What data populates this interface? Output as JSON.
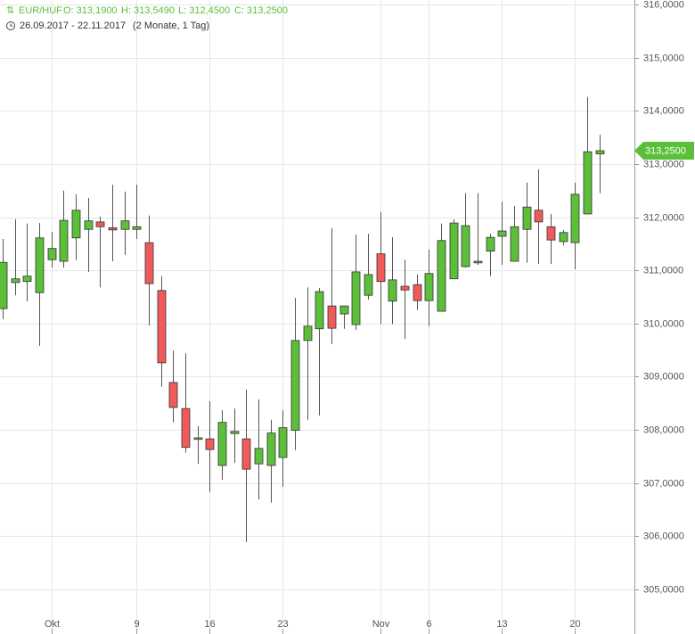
{
  "chart_data": {
    "type": "candlestick",
    "header": {
      "symbol": "EUR/HUF",
      "ohlc": [
        "O: 313,1900",
        "H: 313,5490",
        "L: 312,4500",
        "C: 313,2500"
      ],
      "range": "26.09.2017 - 22.11.2017",
      "duration": "(2 Monate, 1 Tag)"
    },
    "last_label": "313,2500",
    "up_color": "#5cbf3a",
    "down_color": "#ef5a5a",
    "categories": [
      null,
      null,
      null,
      null,
      "Okt",
      null,
      null,
      null,
      null,
      null,
      null,
      "9",
      null,
      null,
      null,
      null,
      null,
      "16",
      null,
      null,
      null,
      null,
      null,
      "23",
      null,
      null,
      null,
      null,
      null,
      null,
      null,
      "Nov",
      null,
      null,
      null,
      "6",
      null,
      null,
      null,
      null,
      null,
      "13",
      null,
      null,
      null,
      null,
      null,
      "20",
      null,
      null
    ],
    "open": [
      310.28,
      310.77,
      310.79,
      310.58,
      311.2,
      311.17,
      311.61,
      311.77,
      311.91,
      311.8,
      311.77,
      311.77,
      311.52,
      310.62,
      308.89,
      308.4,
      307.82,
      307.83,
      307.33,
      307.93,
      307.83,
      307.36,
      307.33,
      307.48,
      307.99,
      309.68,
      309.9,
      310.33,
      310.18,
      309.98,
      310.53,
      311.31,
      310.42,
      310.7,
      310.73,
      310.43,
      310.23,
      310.84,
      311.07,
      311.14,
      311.36,
      311.64,
      311.17,
      311.77,
      312.13,
      311.82,
      311.54,
      311.52,
      312.06,
      313.19
    ],
    "high": [
      311.59,
      311.96,
      311.88,
      311.89,
      311.72,
      312.5,
      312.43,
      312.36,
      312.01,
      312.61,
      312.48,
      312.61,
      312.03,
      310.89,
      309.49,
      309.44,
      308.07,
      308.54,
      308.37,
      308.4,
      308.76,
      308.57,
      308.19,
      308.37,
      310.48,
      310.68,
      310.67,
      311.79,
      310.33,
      311.67,
      311.69,
      312.09,
      311.62,
      311.2,
      310.92,
      311.39,
      311.88,
      311.96,
      312.45,
      312.45,
      311.69,
      312.29,
      312.21,
      312.65,
      312.9,
      312.06,
      311.76,
      312.65,
      314.26,
      313.549
    ],
    "low": [
      310.08,
      310.53,
      310.42,
      309.58,
      311.05,
      311.05,
      311.19,
      310.97,
      310.68,
      311.17,
      311.29,
      311.59,
      309.96,
      308.81,
      308.14,
      307.57,
      307.36,
      306.83,
      307.06,
      307.38,
      305.89,
      306.69,
      306.63,
      306.93,
      307.62,
      308.19,
      308.27,
      309.61,
      309.9,
      309.88,
      310.45,
      309.99,
      309.99,
      309.71,
      310.25,
      309.95,
      310.23,
      310.84,
      311.05,
      311.1,
      310.89,
      311.1,
      311.17,
      311.14,
      311.12,
      311.12,
      311.47,
      311.02,
      312.06,
      312.45
    ],
    "close": [
      311.15,
      310.84,
      310.89,
      311.61,
      311.41,
      311.94,
      312.13,
      311.93,
      311.82,
      311.76,
      311.93,
      311.82,
      310.75,
      309.26,
      308.42,
      307.67,
      307.85,
      307.63,
      308.14,
      307.97,
      307.26,
      307.65,
      307.94,
      308.04,
      309.68,
      309.95,
      310.6,
      309.91,
      310.33,
      310.97,
      310.92,
      310.79,
      310.82,
      310.63,
      310.43,
      310.94,
      311.56,
      311.89,
      311.84,
      311.17,
      311.62,
      311.74,
      311.82,
      312.19,
      311.91,
      311.57,
      311.71,
      312.43,
      313.23,
      313.25
    ],
    "ylim": [
      304.16,
      316.084
    ],
    "yticks": [
      {
        "value": 316,
        "label": "316,0000"
      },
      {
        "value": 315,
        "label": "315,0000"
      },
      {
        "value": 314,
        "label": "314,0000"
      },
      {
        "value": 313,
        "label": "313,0000"
      },
      {
        "value": 312,
        "label": "312,0000"
      },
      {
        "value": 311,
        "label": "311,0000"
      },
      {
        "value": 310,
        "label": "310,0000"
      },
      {
        "value": 309,
        "label": "309,0000"
      },
      {
        "value": 308,
        "label": "308,0000"
      },
      {
        "value": 307,
        "label": "307,0000"
      },
      {
        "value": 306,
        "label": "306,0000"
      },
      {
        "value": 305,
        "label": "305,0000"
      }
    ],
    "grid": true
  }
}
